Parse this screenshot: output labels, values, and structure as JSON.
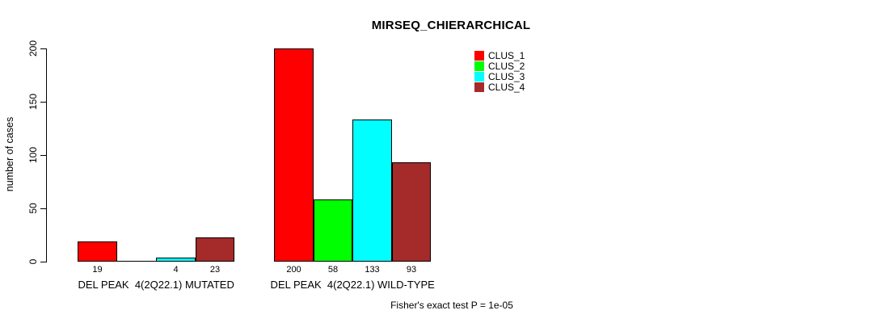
{
  "chart_data": {
    "type": "bar",
    "title": "MIRSEQ_CHIERARCHICAL",
    "xlabel": "",
    "ylabel": "number of cases",
    "ylim": [
      0,
      200
    ],
    "yticks": [
      0,
      50,
      100,
      150,
      200
    ],
    "grid": false,
    "legend_position": "top-right",
    "categories": [
      "DEL PEAK  4(2Q22.1) MUTATED",
      "DEL PEAK  4(2Q22.1) WILD-TYPE"
    ],
    "series": [
      {
        "name": "CLUS_1",
        "color": "#FF0000",
        "values": [
          19,
          200
        ]
      },
      {
        "name": "CLUS_2",
        "color": "#00FF00",
        "values": [
          0,
          58
        ]
      },
      {
        "name": "CLUS_3",
        "color": "#00FFFF",
        "values": [
          4,
          133
        ]
      },
      {
        "name": "CLUS_4",
        "color": "#A52A2A",
        "values": [
          23,
          93
        ]
      }
    ],
    "bar_value_labels_shown": [
      [
        "19",
        "",
        "4",
        "23"
      ],
      [
        "200",
        "58",
        "133",
        "93"
      ]
    ],
    "annotation": "Fisher's exact test P = 1e-05"
  },
  "colors": {
    "background": "#FFFFFF",
    "axis": "#000000",
    "text": "#000000",
    "clus_1": "#FF0000",
    "clus_2": "#00FF00",
    "clus_3": "#00FFFF",
    "clus_4": "#A52A2A"
  }
}
